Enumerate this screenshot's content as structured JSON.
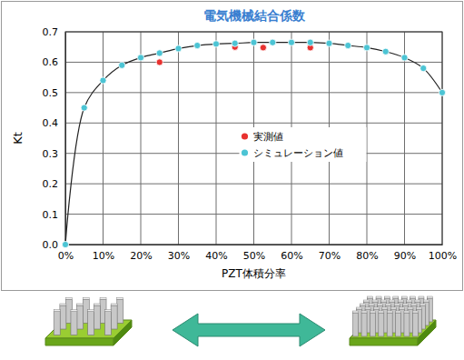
{
  "chart_data": {
    "type": "line",
    "title": "電気機械結合係数",
    "x_label": "PZT体積分率",
    "y_label": "Kt",
    "xlim": [
      0,
      100
    ],
    "xticks": [
      {
        "value": 0,
        "label": "0%"
      },
      {
        "value": 10,
        "label": "10%"
      },
      {
        "value": 20,
        "label": "20%"
      },
      {
        "value": 30,
        "label": "30%"
      },
      {
        "value": 40,
        "label": "40%"
      },
      {
        "value": 50,
        "label": "50%"
      },
      {
        "value": 60,
        "label": "60%"
      },
      {
        "value": 70,
        "label": "70%"
      },
      {
        "value": 80,
        "label": "80%"
      },
      {
        "value": 90,
        "label": "90%"
      },
      {
        "value": 100,
        "label": "100%"
      }
    ],
    "ylim": [
      0,
      0.7
    ],
    "yticks": [
      {
        "value": 0,
        "label": "0.0"
      },
      0.1,
      0.2,
      0.3,
      0.4,
      0.5,
      0.6,
      0.7
    ],
    "grid": true,
    "legend": "center",
    "series": [
      {
        "name": "実測値",
        "type": "scatter",
        "marker": "circle",
        "color": "#e8312f",
        "x": [
          25,
          45,
          52.5,
          65
        ],
        "values": [
          0.6,
          0.65,
          0.648,
          0.648
        ]
      },
      {
        "name": "シミュレーション値",
        "type": "line",
        "marker": "circle",
        "color": "#4cc4d4",
        "x": [
          0,
          5,
          10,
          15,
          20,
          25,
          30,
          35,
          40,
          45,
          50,
          55,
          60,
          65,
          70,
          75,
          80,
          85,
          90,
          95,
          100
        ],
        "values": [
          0.0,
          0.45,
          0.54,
          0.59,
          0.615,
          0.63,
          0.645,
          0.655,
          0.66,
          0.662,
          0.665,
          0.665,
          0.665,
          0.665,
          0.662,
          0.655,
          0.648,
          0.635,
          0.615,
          0.58,
          0.5
        ]
      }
    ]
  }
}
